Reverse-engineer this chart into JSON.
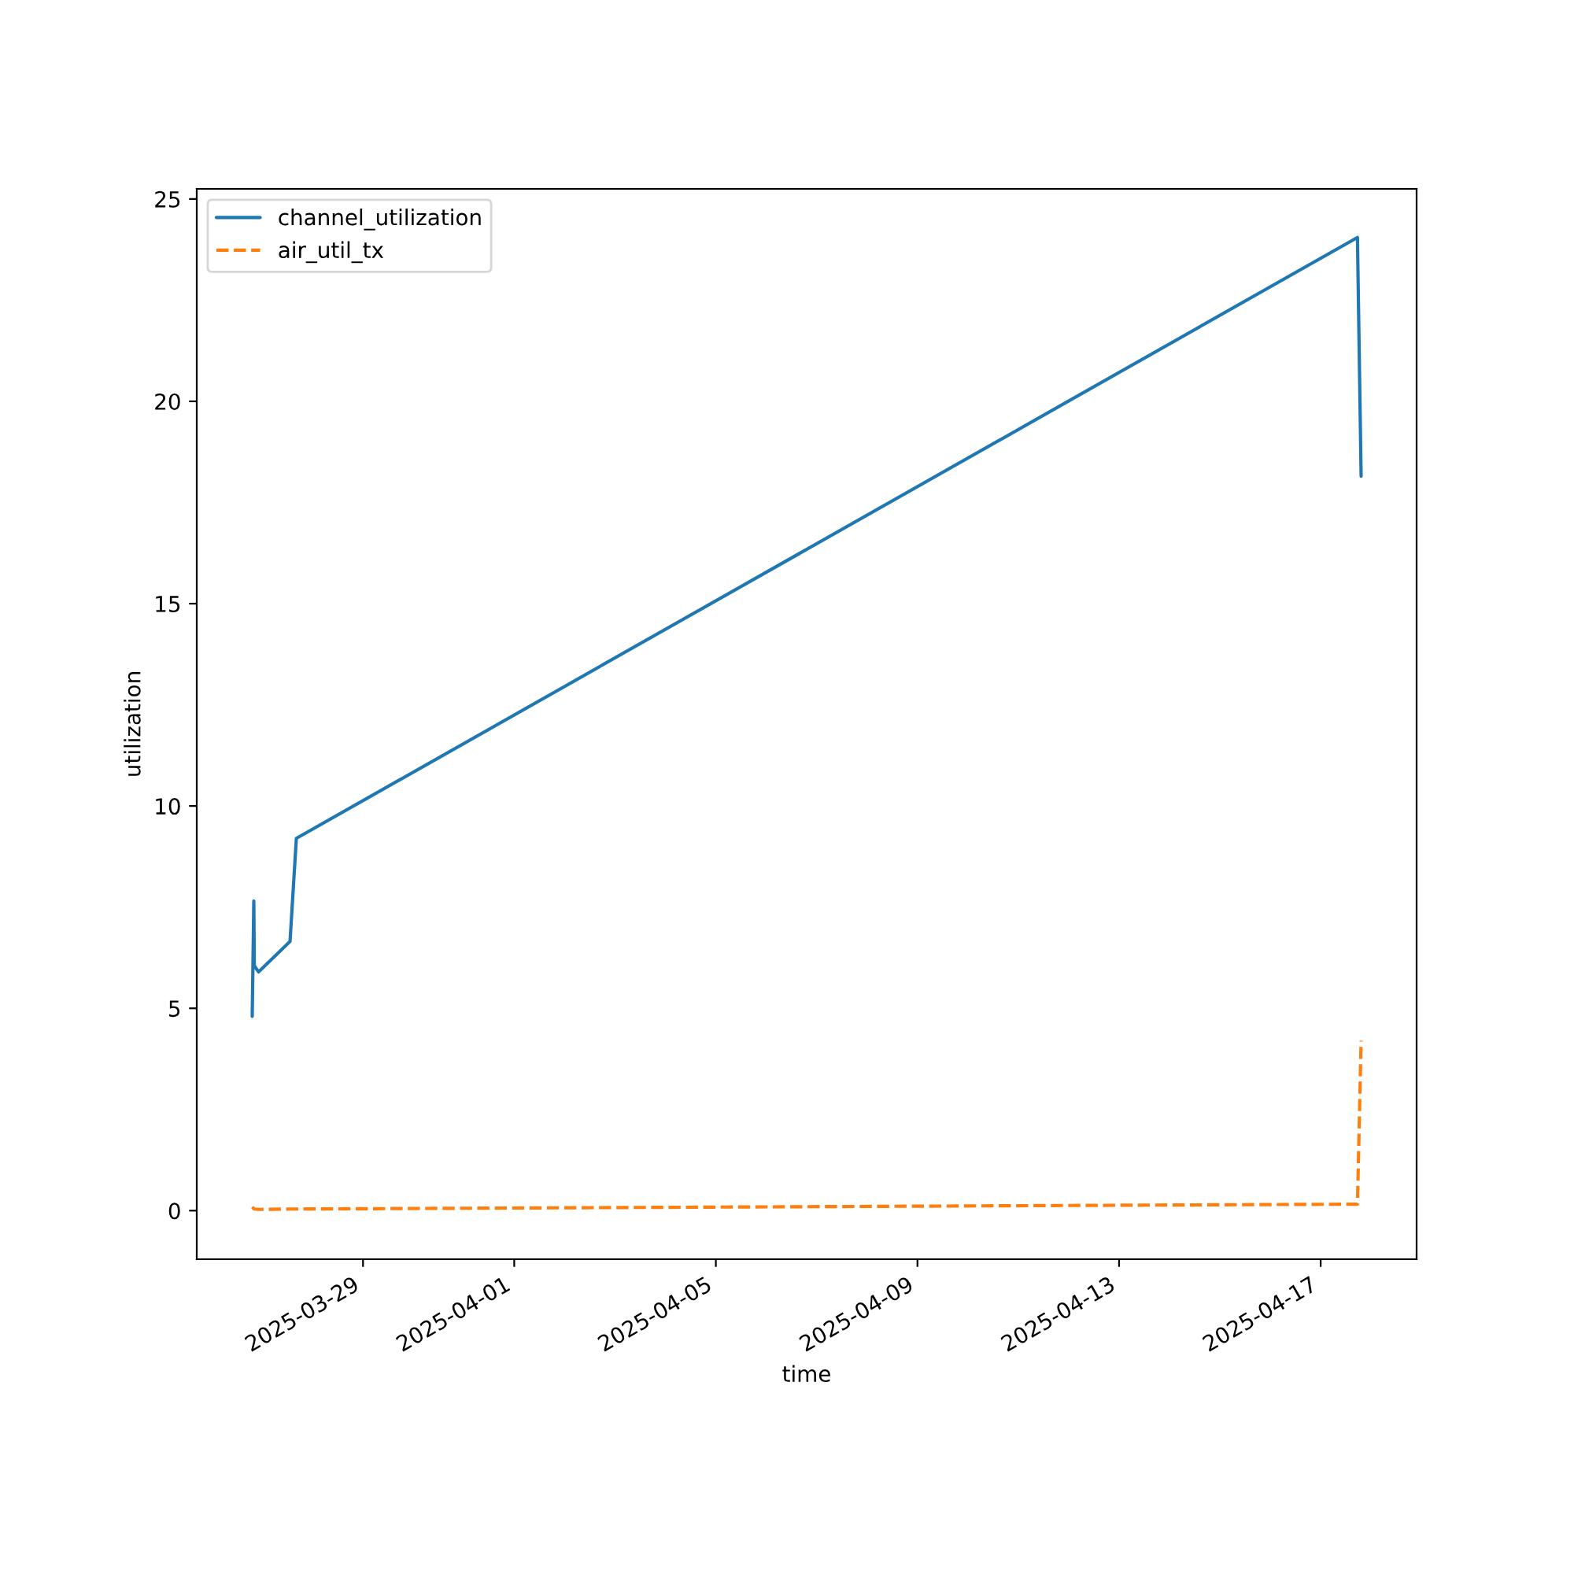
{
  "chart_data": {
    "type": "line",
    "xlabel": "time",
    "ylabel": "utilization",
    "x": [
      "2025-03-26T19:15",
      "2025-03-26T20:00",
      "2025-03-26T20:15",
      "2025-03-26T22:15",
      "2025-03-27T13:15",
      "2025-03-27T16:15",
      "2025-04-17T17:30",
      "2025-04-17T19:15"
    ],
    "series": [
      {
        "name": "channel_utilization",
        "color": "#1f77b4",
        "line_style": "solid",
        "values": [
          4.8,
          7.65,
          6.05,
          5.9,
          6.65,
          9.2,
          24.05,
          18.15
        ]
      },
      {
        "name": "air_util_tx",
        "color": "#ff7f0e",
        "line_style": "dashed",
        "values": [
          0.09,
          0.05,
          0.04,
          0.03,
          0.04,
          0.04,
          0.16,
          4.2
        ]
      }
    ],
    "xlim": [
      "2025-03-25T16:50",
      "2025-04-18T21:40"
    ],
    "xticks": [
      "2025-03-29",
      "2025-04-01",
      "2025-04-05",
      "2025-04-09",
      "2025-04-13",
      "2025-04-17"
    ],
    "ylim": [
      -1.2,
      25.25
    ],
    "yticks": [
      0,
      5,
      10,
      15,
      20,
      25
    ],
    "legend": "top left"
  }
}
